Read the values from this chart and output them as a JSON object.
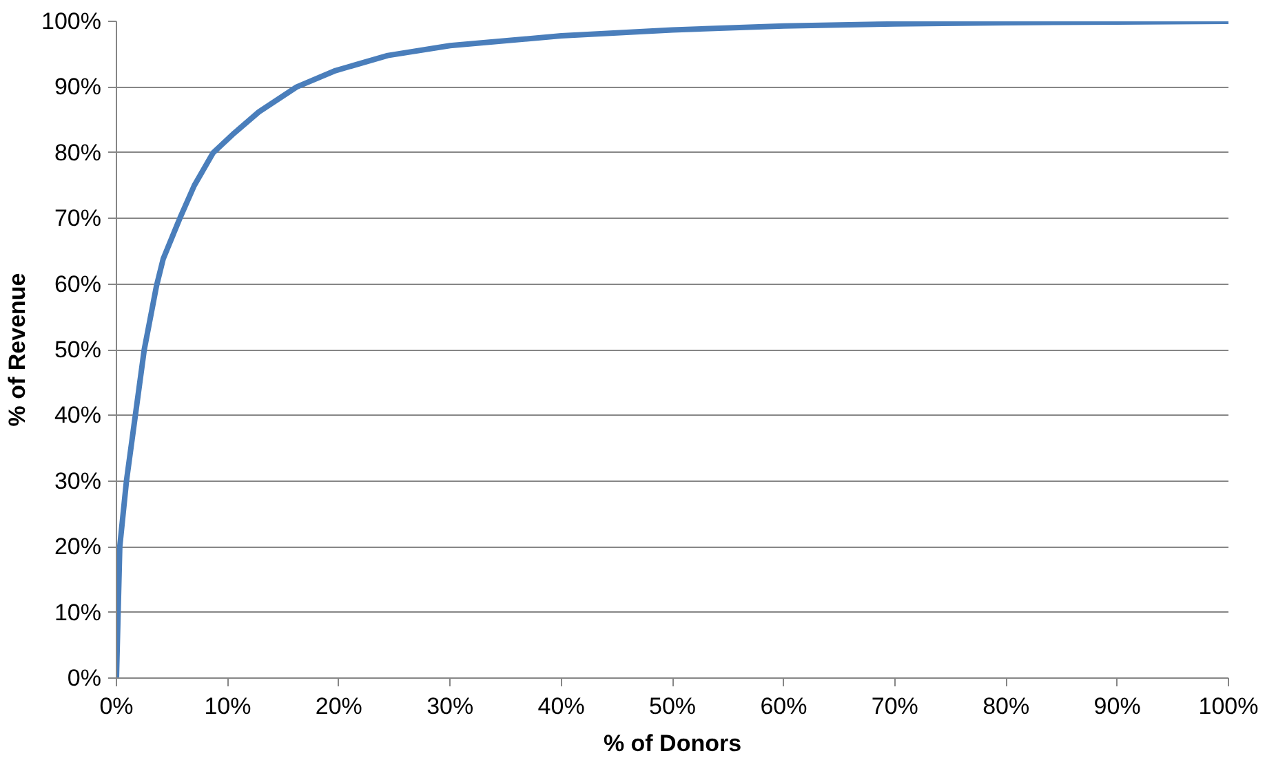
{
  "chart_data": {
    "type": "line",
    "xlabel": "% of Donors",
    "ylabel": "% of Revenue",
    "x": [
      0,
      0.3,
      0.9,
      1.7,
      2.5,
      3.6,
      4.2,
      5.7,
      7,
      8.7,
      10.6,
      12.8,
      16.2,
      19.7,
      24.4,
      30,
      40,
      50,
      60,
      70,
      80,
      90,
      100
    ],
    "series": [
      {
        "color": "#4a7ebb",
        "values": [
          0,
          20,
          30,
          40,
          50,
          59.7,
          63.8,
          70,
          75,
          80,
          83,
          86.2,
          90,
          92.5,
          94.8,
          96.3,
          97.8,
          98.7,
          99.3,
          99.6,
          99.8,
          99.9,
          100
        ]
      }
    ],
    "xlim": [
      0,
      100
    ],
    "ylim": [
      0,
      100
    ],
    "xticks": [
      {
        "value": 0,
        "label": "0%"
      },
      {
        "value": 10,
        "label": "10%"
      },
      {
        "value": 20,
        "label": "20%"
      },
      {
        "value": 30,
        "label": "30%"
      },
      {
        "value": 40,
        "label": "40%"
      },
      {
        "value": 50,
        "label": "50%"
      },
      {
        "value": 60,
        "label": "60%"
      },
      {
        "value": 70,
        "label": "70%"
      },
      {
        "value": 80,
        "label": "80%"
      },
      {
        "value": 90,
        "label": "90%"
      },
      {
        "value": 100,
        "label": "100%"
      }
    ],
    "yticks": [
      {
        "value": 0,
        "label": "0%"
      },
      {
        "value": 10,
        "label": "10%"
      },
      {
        "value": 20,
        "label": "20%"
      },
      {
        "value": 30,
        "label": "30%"
      },
      {
        "value": 40,
        "label": "40%"
      },
      {
        "value": 50,
        "label": "50%"
      },
      {
        "value": 60,
        "label": "60%"
      },
      {
        "value": 70,
        "label": "70%"
      },
      {
        "value": 80,
        "label": "80%"
      },
      {
        "value": 90,
        "label": "90%"
      },
      {
        "value": 100,
        "label": "100%"
      }
    ],
    "grid": "y",
    "line_style": "solid",
    "marker": "none"
  }
}
